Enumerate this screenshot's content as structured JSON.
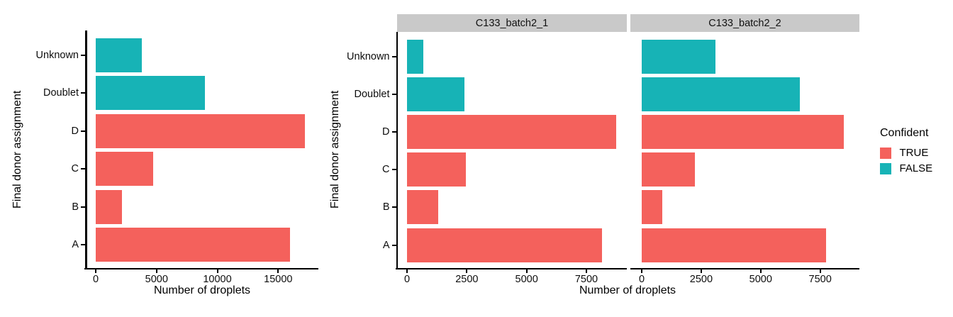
{
  "colors": {
    "confident_true": "#F4615C",
    "confident_false": "#17B3B6",
    "strip_bg": "#C9C9C9",
    "axis": "#000000"
  },
  "chart_data": [
    {
      "type": "bar",
      "orientation": "horizontal",
      "panel": "combined",
      "xlabel": "Number of droplets",
      "ylabel": "Final donor assignment",
      "categories": [
        "Unknown",
        "Doublet",
        "D",
        "C",
        "B",
        "A"
      ],
      "categories_order": "top-to-bottom",
      "series": [
        {
          "name": "Number of droplets",
          "values": [
            3770,
            9000,
            17200,
            4700,
            2150,
            16000
          ]
        }
      ],
      "confident": [
        false,
        false,
        true,
        true,
        true,
        true
      ],
      "x_ticks": [
        0,
        5000,
        10000,
        15000
      ],
      "xlim": [
        0,
        18100
      ],
      "grid": false,
      "legend_position": "none"
    },
    {
      "type": "bar",
      "orientation": "horizontal",
      "panel": "faceted",
      "xlabel": "Number of droplets",
      "ylabel": "Final donor assignment",
      "categories": [
        "Unknown",
        "Doublet",
        "D",
        "C",
        "B",
        "A"
      ],
      "categories_order": "top-to-bottom",
      "facets": [
        {
          "label": "C133_batch2_1",
          "values": [
            670,
            2390,
            8750,
            2450,
            1290,
            8150
          ]
        },
        {
          "label": "C133_batch2_2",
          "values": [
            3090,
            6650,
            8480,
            2230,
            860,
            7750
          ]
        }
      ],
      "confident": [
        false,
        false,
        true,
        true,
        true,
        true
      ],
      "x_ticks": [
        0,
        2500,
        5000,
        7500
      ],
      "xlim": [
        0,
        9200
      ],
      "grid": false,
      "legend": {
        "title": "Confident",
        "position": "right",
        "entries": [
          {
            "label": "TRUE",
            "key": "true"
          },
          {
            "label": "FALSE",
            "key": "false"
          }
        ]
      }
    }
  ]
}
